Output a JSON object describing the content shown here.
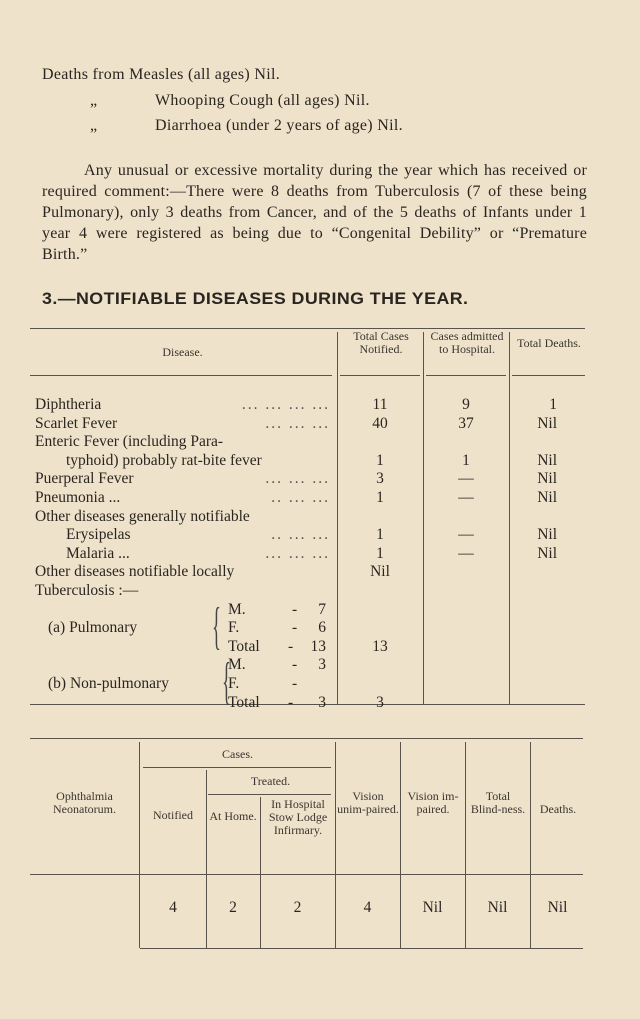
{
  "intro_lines": [
    {
      "prefix": "Deaths from",
      "text": "Measles (all ages)  Nil."
    },
    {
      "prefix": "„",
      "text": "Whooping Cough (all ages)  Nil."
    },
    {
      "prefix": "„",
      "text": "Diarrhoea (under 2 years of age)  Nil."
    }
  ],
  "paragraph": "Any unusual or excessive mortality during the year which has received or required comment:—There were 8 deaths from Tuberculosis (7 of these being Pulmonary), only 3 deaths from Cancer, and of the 5 deaths of Infants under 1 year 4 were registered as being due to “Congenital Debility” or “Premature Birth.”",
  "section_title": "3.—NOTIFIABLE DISEASES DURING THE YEAR.",
  "notifiable": {
    "headers": {
      "disease": "Disease.",
      "notified": "Total Cases Notified.",
      "hospital": "Cases admitted to Hospital.",
      "deaths": "Total Deaths."
    },
    "rows": [
      {
        "label": "Diphtheria",
        "dots": "...    ...    ...    ...",
        "notified": "11",
        "hospital": "9",
        "deaths": "1"
      },
      {
        "label": "Scarlet Fever",
        "dots": "...    ...    ...",
        "notified": "40",
        "hospital": "37",
        "deaths": "Nil"
      },
      {
        "label": "Enteric Fever (including Para-",
        "dots": "",
        "notified": "",
        "hospital": "",
        "deaths": ""
      },
      {
        "label": "typhoid) probably rat-bite fever",
        "dots": "",
        "notified": "1",
        "hospital": "1",
        "deaths": "Nil",
        "indent": true
      },
      {
        "label": "Puerperal Fever",
        "dots": "...    ...    ...",
        "notified": "3",
        "hospital": "—",
        "deaths": "Nil"
      },
      {
        "label": "Pneumonia ...",
        "dots": "..    ...    ...",
        "notified": "1",
        "hospital": "—",
        "deaths": "Nil"
      },
      {
        "label": "Other diseases generally notifiable",
        "dots": "",
        "notified": "",
        "hospital": "",
        "deaths": ""
      },
      {
        "label": "Erysipelas",
        "dots": "..    ...    ...",
        "notified": "1",
        "hospital": "—",
        "deaths": "Nil",
        "indent": true
      },
      {
        "label": "Malaria ...",
        "dots": "...    ...    ...",
        "notified": "1",
        "hospital": "—",
        "deaths": "Nil",
        "indent": true
      },
      {
        "label": "Other diseases notifiable locally",
        "dots": "",
        "notified": "Nil",
        "hospital": "",
        "deaths": ""
      },
      {
        "label": "Tuberculosis :—",
        "dots": "",
        "notified": "",
        "hospital": "",
        "deaths": ""
      }
    ],
    "tuberculosis": [
      {
        "label": "(a) Pulmonary",
        "lines": [
          {
            "k": "M.",
            "v": "7"
          },
          {
            "k": "F.",
            "v": "6"
          },
          {
            "k": "Total",
            "v": "13"
          }
        ],
        "notified": "13"
      },
      {
        "label": "(b) Non-pulmonary",
        "lines": [
          {
            "k": "M.",
            "v": "3"
          },
          {
            "k": "F.",
            "v": ""
          },
          {
            "k": "Total",
            "v": "3"
          }
        ],
        "notified": "3"
      }
    ]
  },
  "ophthalmia": {
    "headers": {
      "title": "Ophthalmia Neonatorum.",
      "cases": "Cases.",
      "treated": "Treated.",
      "notified": "Notified",
      "home": "At Home.",
      "hospital": "In Hospital Stow Lodge Infirmary.",
      "unimpaired": "Vision unim-paired.",
      "impaired": "Vision im-paired.",
      "blindness": "Total Blind-ness.",
      "deaths": "Deaths."
    },
    "values": {
      "notified": "4",
      "home": "2",
      "hospital": "2",
      "unimpaired": "4",
      "impaired": "Nil",
      "blindness": "Nil",
      "deaths": "Nil"
    }
  }
}
